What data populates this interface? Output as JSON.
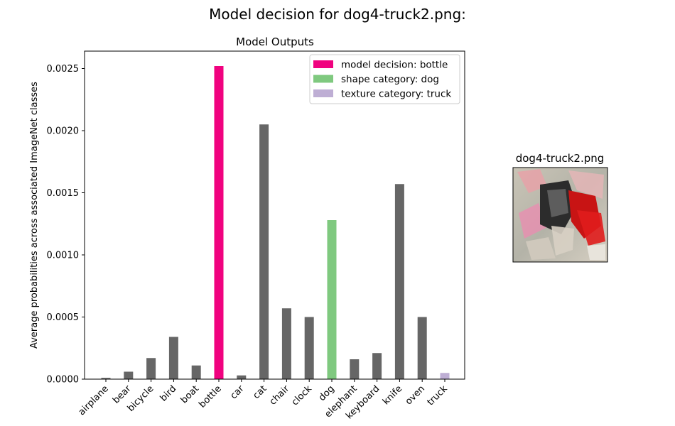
{
  "suptitle": "Model decision for dog4-truck2.png:",
  "image_panel": {
    "title": "dog4-truck2.png"
  },
  "chart_data": {
    "type": "bar",
    "title": "Model Outputs",
    "xlabel": "",
    "ylabel": "Average probabilities across associated ImageNet classes",
    "categories": [
      "airplane",
      "bear",
      "bicycle",
      "bird",
      "boat",
      "bottle",
      "car",
      "cat",
      "chair",
      "clock",
      "dog",
      "elephant",
      "keyboard",
      "knife",
      "oven",
      "truck"
    ],
    "values": [
      1e-05,
      6e-05,
      0.00017,
      0.00034,
      0.00011,
      0.00252,
      3e-05,
      0.00205,
      0.00057,
      0.0005,
      0.00128,
      0.00016,
      0.00021,
      0.00157,
      0.0005,
      5e-05
    ],
    "ylim": [
      0,
      0.00264
    ],
    "yticks": [
      "0.0000",
      "0.0005",
      "0.0010",
      "0.0015",
      "0.0020",
      "0.0025"
    ],
    "ytick_values": [
      0,
      0.0005,
      0.001,
      0.0015,
      0.002,
      0.0025
    ],
    "colors": {
      "default": "#666666",
      "model_decision": "#f0027f",
      "shape_category": "#7fc97f",
      "texture_category": "#beaed4"
    },
    "highlights": {
      "bottle": "model_decision",
      "dog": "shape_category",
      "truck": "texture_category"
    },
    "legend": {
      "placement": "top-right",
      "entries": [
        {
          "label": "model decision: bottle",
          "color_key": "model_decision"
        },
        {
          "label": "shape category: dog",
          "color_key": "shape_category"
        },
        {
          "label": "texture category: truck",
          "color_key": "texture_category"
        }
      ]
    },
    "grid": false
  }
}
